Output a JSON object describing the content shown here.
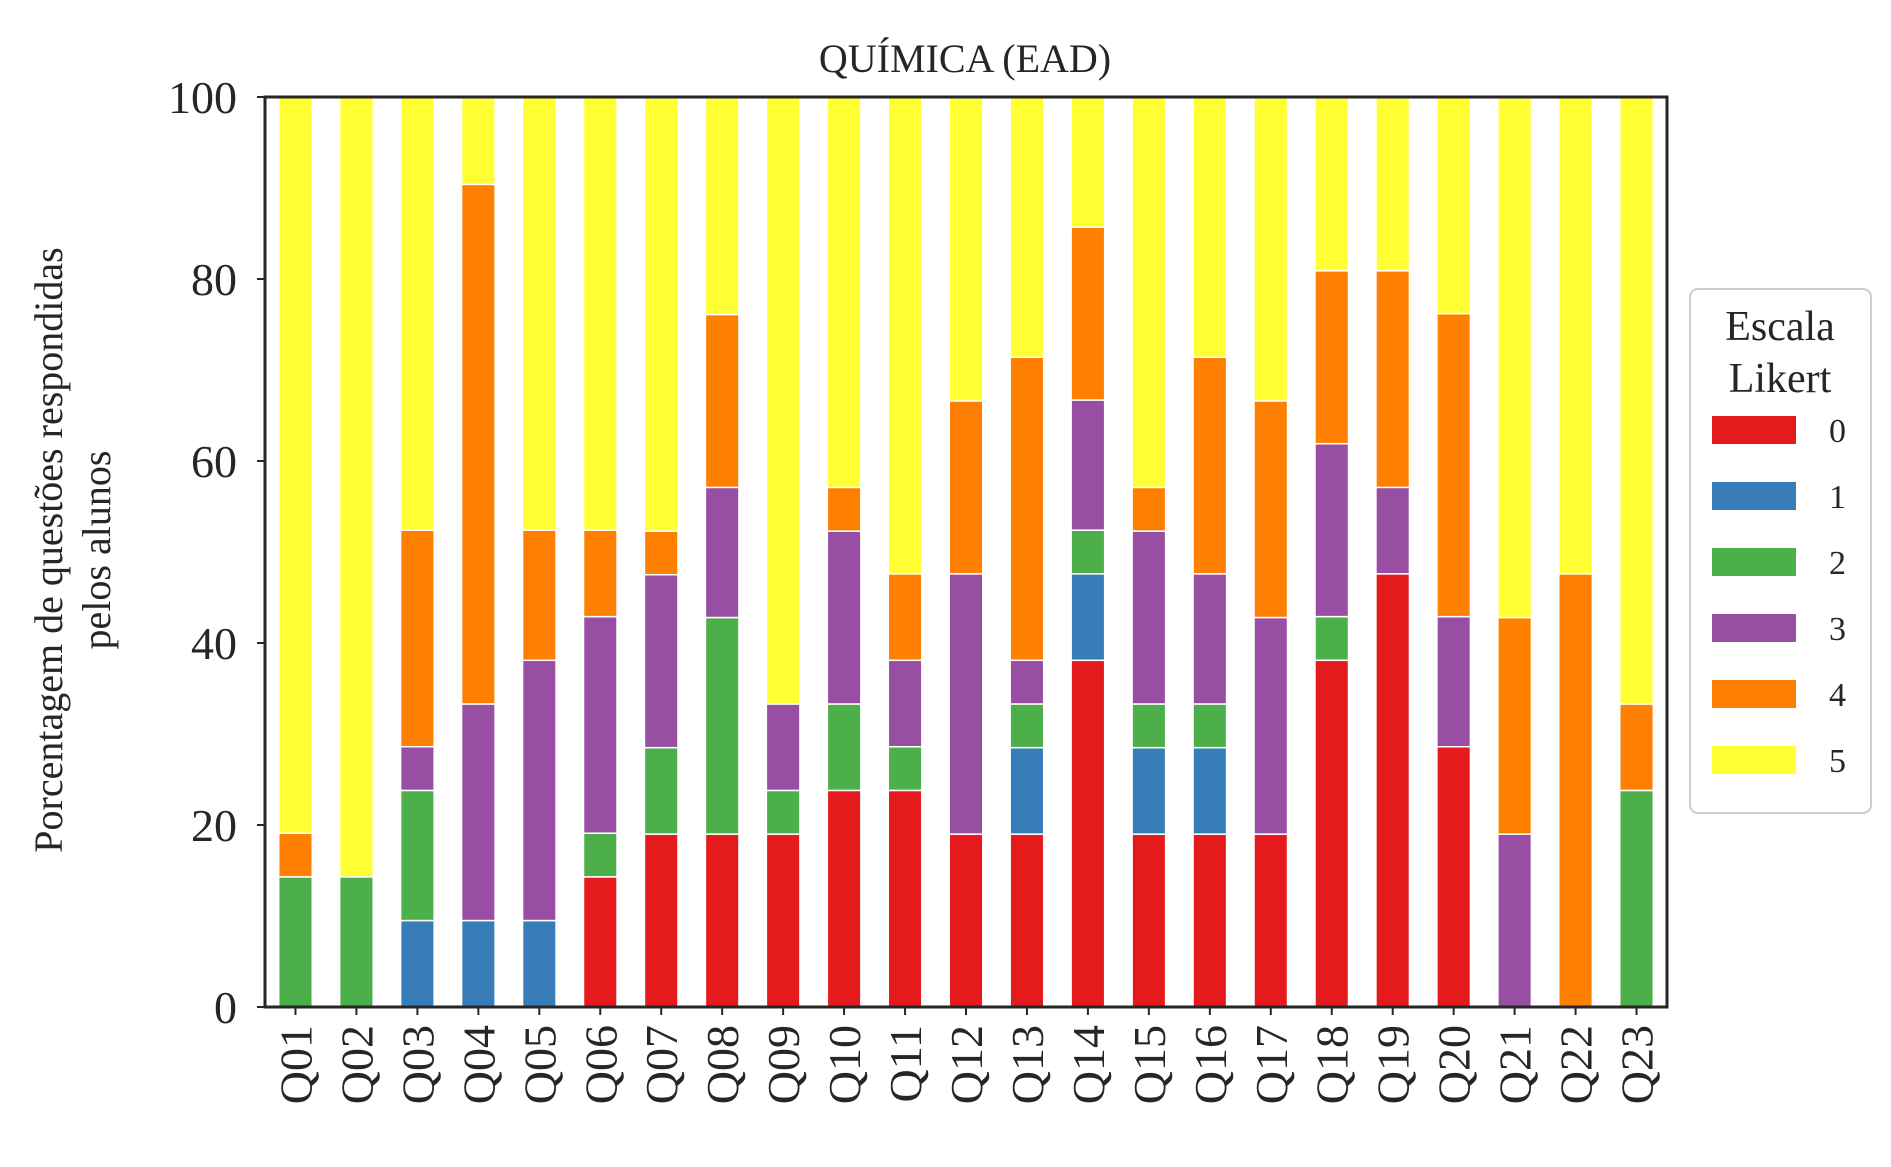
{
  "chart_data": {
    "type": "bar",
    "stacked": true,
    "title": "QUÍMICA (EAD)",
    "ylabel": [
      "Porcentagem de questões respondidas",
      "pelos alunos"
    ],
    "xlabel": "",
    "ylim": [
      0,
      100
    ],
    "yticks": [
      0,
      20,
      40,
      60,
      80,
      100
    ],
    "grid": false,
    "legend": {
      "title": [
        "Escala",
        "Likert"
      ],
      "placement": "center-right"
    },
    "categories": [
      "Q01",
      "Q02",
      "Q03",
      "Q04",
      "Q05",
      "Q06",
      "Q07",
      "Q08",
      "Q09",
      "Q10",
      "Q11",
      "Q12",
      "Q13",
      "Q14",
      "Q15",
      "Q16",
      "Q17",
      "Q18",
      "Q19",
      "Q20",
      "Q21",
      "Q22",
      "Q23"
    ],
    "series": [
      {
        "name": "0",
        "color": "#e41a1c",
        "values": [
          0,
          0,
          0,
          0,
          0,
          14.3,
          19,
          19,
          19,
          23.8,
          23.8,
          19,
          19,
          38.1,
          19,
          19,
          19,
          38.1,
          47.6,
          28.6,
          0,
          0,
          0
        ]
      },
      {
        "name": "1",
        "color": "#377eb8",
        "values": [
          0,
          0,
          9.5,
          9.5,
          9.5,
          0,
          0,
          0,
          0,
          0,
          0,
          0,
          9.5,
          9.5,
          9.5,
          9.5,
          0,
          0,
          0,
          0,
          0,
          0,
          0
        ]
      },
      {
        "name": "2",
        "color": "#4daf4a",
        "values": [
          14.3,
          14.3,
          14.3,
          0,
          0,
          4.8,
          9.5,
          23.8,
          4.8,
          9.5,
          4.8,
          0,
          4.8,
          4.8,
          4.8,
          4.8,
          0,
          4.8,
          0,
          0,
          0,
          0,
          23.8
        ]
      },
      {
        "name": "3",
        "color": "#984ea3",
        "values": [
          0,
          0,
          4.8,
          23.8,
          28.6,
          23.8,
          19,
          14.3,
          9.5,
          19,
          9.5,
          28.6,
          4.8,
          14.3,
          19,
          14.3,
          23.8,
          19,
          9.5,
          14.3,
          19,
          0,
          0
        ]
      },
      {
        "name": "4",
        "color": "#ff7f00",
        "values": [
          4.8,
          0,
          23.8,
          57.1,
          14.3,
          9.5,
          4.8,
          19,
          0,
          4.8,
          9.5,
          19,
          33.3,
          19,
          4.8,
          23.8,
          23.8,
          19,
          23.8,
          33.3,
          23.8,
          47.6,
          9.5
        ]
      },
      {
        "name": "5",
        "color": "#ffff33",
        "values": [
          81,
          85.7,
          47.6,
          9.5,
          47.6,
          47.6,
          47.6,
          23.8,
          66.7,
          42.9,
          52.4,
          33.3,
          28.6,
          14.3,
          42.9,
          28.6,
          33.3,
          19,
          19,
          23.8,
          57.1,
          52.4,
          66.7
        ]
      }
    ]
  }
}
